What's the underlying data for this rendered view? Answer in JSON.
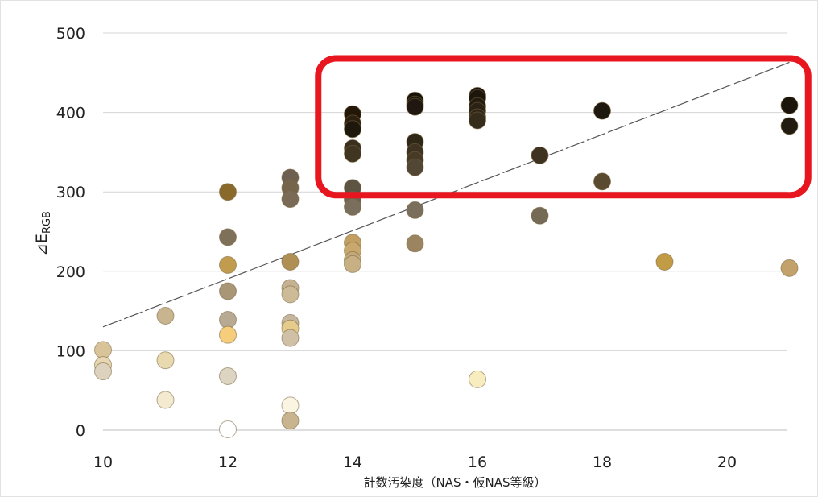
{
  "chart_data": {
    "type": "scatter",
    "xlabel": "計数汚染度（NAS・仮NAS等級）",
    "ylabel_main": "⊿E",
    "ylabel_sub": "RGB",
    "xlim": [
      10,
      21
    ],
    "ylim": [
      0,
      500
    ],
    "x_ticks": [
      10,
      12,
      14,
      16,
      18,
      20
    ],
    "y_ticks": [
      0,
      100,
      200,
      300,
      400,
      500
    ],
    "grid": "horizontal",
    "trendline": {
      "x": [
        10,
        21
      ],
      "y": [
        130,
        463
      ],
      "style": "dashed",
      "color": "#555555"
    },
    "highlight": {
      "x_range": [
        13.5,
        21.3
      ],
      "y_range": [
        300,
        460
      ],
      "color": "#e8161e"
    },
    "points": [
      {
        "x": 10,
        "y": 101,
        "color": "#d9c49a"
      },
      {
        "x": 10,
        "y": 82,
        "color": "#e6d6b2"
      },
      {
        "x": 10,
        "y": 74,
        "color": "#ddd2bd"
      },
      {
        "x": 11,
        "y": 144,
        "color": "#c8b48e"
      },
      {
        "x": 11,
        "y": 88,
        "color": "#e9d9ae"
      },
      {
        "x": 11,
        "y": 38,
        "color": "#f3ead0"
      },
      {
        "x": 12,
        "y": 300,
        "color": "#8a6a2a"
      },
      {
        "x": 12,
        "y": 243,
        "color": "#7f705a"
      },
      {
        "x": 12,
        "y": 208,
        "color": "#c29c4e"
      },
      {
        "x": 12,
        "y": 175,
        "color": "#a89677"
      },
      {
        "x": 12,
        "y": 139,
        "color": "#b8aa92"
      },
      {
        "x": 12,
        "y": 120,
        "color": "#f6cd7b"
      },
      {
        "x": 12,
        "y": 68,
        "color": "#ddd5c2"
      },
      {
        "x": 12,
        "y": 1,
        "color": "#ffffff"
      },
      {
        "x": 13,
        "y": 318,
        "color": "#6e6050"
      },
      {
        "x": 13,
        "y": 305,
        "color": "#75654c"
      },
      {
        "x": 13,
        "y": 291,
        "color": "#7a6b56"
      },
      {
        "x": 13,
        "y": 212,
        "color": "#b08f55"
      },
      {
        "x": 13,
        "y": 179,
        "color": "#c5b292"
      },
      {
        "x": 13,
        "y": 171,
        "color": "#cdbb98"
      },
      {
        "x": 13,
        "y": 135,
        "color": "#c6b79f"
      },
      {
        "x": 13,
        "y": 128,
        "color": "#e5cb8c"
      },
      {
        "x": 13,
        "y": 116,
        "color": "#cfc0a6"
      },
      {
        "x": 13,
        "y": 31,
        "color": "#faf5e2"
      },
      {
        "x": 13,
        "y": 12,
        "color": "#c8b48e"
      },
      {
        "x": 14,
        "y": 398,
        "color": "#231808"
      },
      {
        "x": 14,
        "y": 386,
        "color": "#2c2110"
      },
      {
        "x": 14,
        "y": 379,
        "color": "#1e170c"
      },
      {
        "x": 14,
        "y": 355,
        "color": "#3a3020"
      },
      {
        "x": 14,
        "y": 348,
        "color": "#403520"
      },
      {
        "x": 14,
        "y": 305,
        "color": "#5e5444"
      },
      {
        "x": 14,
        "y": 290,
        "color": "#6e6352"
      },
      {
        "x": 14,
        "y": 281,
        "color": "#7a6f5c"
      },
      {
        "x": 14,
        "y": 236,
        "color": "#c2a064"
      },
      {
        "x": 14,
        "y": 226,
        "color": "#c8a86c"
      },
      {
        "x": 14,
        "y": 214,
        "color": "#c4aa7a"
      },
      {
        "x": 14,
        "y": 209,
        "color": "#c7b084"
      },
      {
        "x": 15,
        "y": 415,
        "color": "#181206"
      },
      {
        "x": 15,
        "y": 410,
        "color": "#1d160a"
      },
      {
        "x": 15,
        "y": 407,
        "color": "#201810"
      },
      {
        "x": 15,
        "y": 363,
        "color": "#2f2718"
      },
      {
        "x": 15,
        "y": 350,
        "color": "#3e3322"
      },
      {
        "x": 15,
        "y": 340,
        "color": "#463a26"
      },
      {
        "x": 15,
        "y": 331,
        "color": "#524634"
      },
      {
        "x": 15,
        "y": 277,
        "color": "#7a6f5c"
      },
      {
        "x": 15,
        "y": 235,
        "color": "#9b8460"
      },
      {
        "x": 16,
        "y": 421,
        "color": "#17120a"
      },
      {
        "x": 16,
        "y": 418,
        "color": "#1c160c"
      },
      {
        "x": 16,
        "y": 408,
        "color": "#241c10"
      },
      {
        "x": 16,
        "y": 402,
        "color": "#2a2214"
      },
      {
        "x": 16,
        "y": 394,
        "color": "#30271a"
      },
      {
        "x": 16,
        "y": 390,
        "color": "#362c1c"
      },
      {
        "x": 16,
        "y": 64,
        "color": "#f7edbf"
      },
      {
        "x": 17,
        "y": 346,
        "color": "#3e3220"
      },
      {
        "x": 17,
        "y": 270,
        "color": "#756a56"
      },
      {
        "x": 18,
        "y": 402,
        "color": "#1e180e"
      },
      {
        "x": 18,
        "y": 313,
        "color": "#594a30"
      },
      {
        "x": 19,
        "y": 212,
        "color": "#c29b45"
      },
      {
        "x": 21,
        "y": 409,
        "color": "#1b140a"
      },
      {
        "x": 21,
        "y": 383,
        "color": "#221b10"
      },
      {
        "x": 21,
        "y": 204,
        "color": "#c2a26a"
      }
    ]
  }
}
